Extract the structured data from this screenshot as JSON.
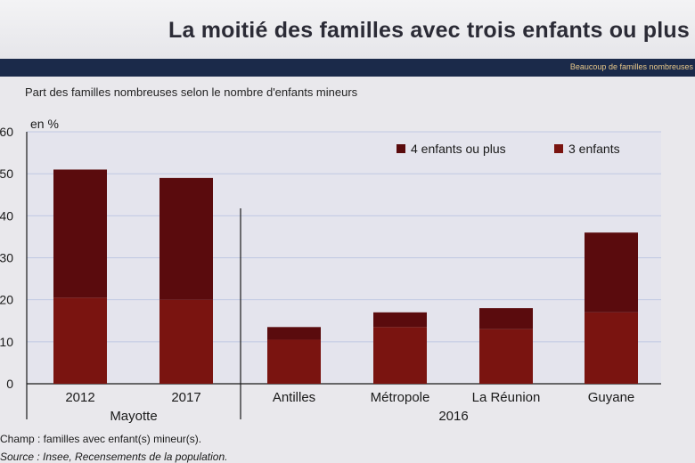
{
  "slide": {
    "title": "La moitié des familles avec trois enfants ou plus",
    "band_label": "Beaucoup de familles nombreuses"
  },
  "chart_data": {
    "type": "bar",
    "stacked": true,
    "title": "Part des familles nombreuses selon le nombre d'enfants mineurs",
    "unit_label": "en %",
    "ylim": [
      0,
      60
    ],
    "yticks": [
      0,
      10,
      20,
      30,
      40,
      50,
      60
    ],
    "grid": true,
    "legend_position": "top-right",
    "categories": [
      "2012",
      "2017",
      "Antilles",
      "Métropole",
      "La Réunion",
      "Guyane"
    ],
    "groups": [
      {
        "label": "Mayotte",
        "categories": [
          "2012",
          "2017"
        ]
      },
      {
        "label": "2016",
        "categories": [
          "Antilles",
          "Métropole",
          "La Réunion",
          "Guyane"
        ]
      }
    ],
    "series": [
      {
        "name": "3 enfants",
        "color": "#7a1410",
        "values": [
          20.5,
          20,
          10.5,
          13.5,
          13,
          17
        ]
      },
      {
        "name": "4 enfants ou plus",
        "color": "#5a0b0d",
        "values": [
          30.5,
          29,
          3,
          3.5,
          5,
          19
        ]
      }
    ]
  },
  "footnotes": {
    "champ": "Champ : familles avec enfant(s) mineur(s).",
    "source": "Source : Insee, Recensements de la population."
  },
  "colors": {
    "plot_bg": "#e4e4ed",
    "grid": "#bfc8e2",
    "axis": "#1a1a1a"
  }
}
